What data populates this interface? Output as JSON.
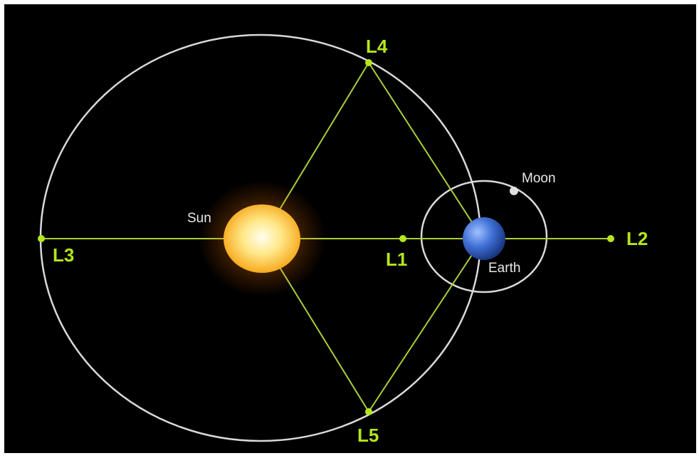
{
  "nodes": [
    {
      "label": "L4"
    },
    {
      "label": "L5"
    },
    {
      "label": "L3"
    },
    {
      "label": "L1"
    },
    {
      "label": "L2"
    },
    {
      "label": "Sun"
    },
    {
      "label": "Earth"
    },
    {
      "label": "Moon"
    }
  ]
}
